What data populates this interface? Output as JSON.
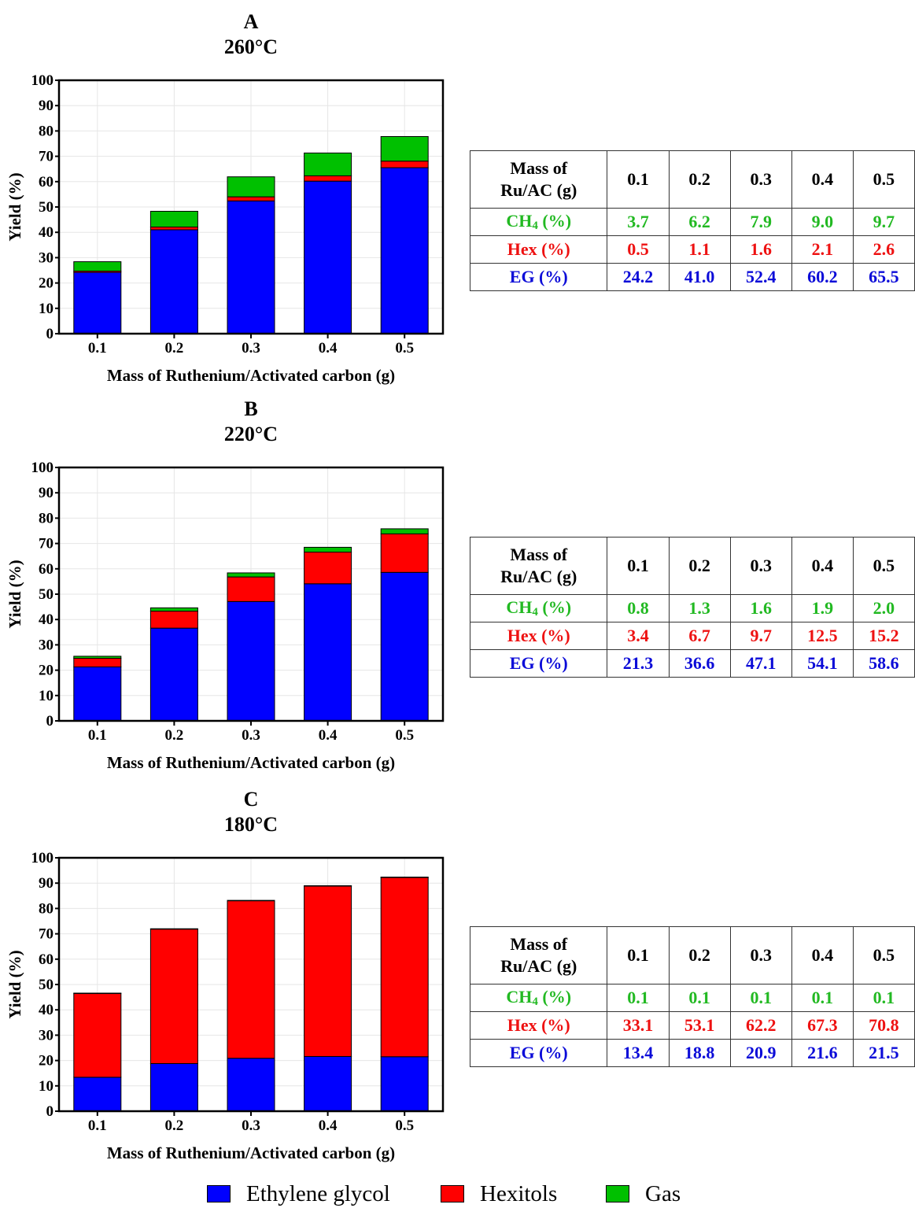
{
  "colors": {
    "eg": "#0000ff",
    "hex": "#ff0000",
    "gas": "#00c000"
  },
  "legend": [
    {
      "label": "Ethylene glycol",
      "color": "#0000ff"
    },
    {
      "label": "Hexitols",
      "color": "#ff0000"
    },
    {
      "label": "Gas",
      "color": "#00c000"
    }
  ],
  "chart_data": [
    {
      "type": "bar",
      "stacked": true,
      "panel": "A",
      "title": "260°C",
      "xlabel": "Mass of Ruthenium/Activated carbon (g)",
      "ylabel": "Yield (%)",
      "ylim": [
        0,
        100
      ],
      "yticks": [
        0,
        10,
        20,
        30,
        40,
        50,
        60,
        70,
        80,
        90,
        100
      ],
      "grid": true,
      "categories": [
        "0.1",
        "0.2",
        "0.3",
        "0.4",
        "0.5"
      ],
      "series": [
        {
          "name": "Ethylene glycol",
          "values": [
            24.2,
            41.0,
            52.4,
            60.2,
            65.5
          ]
        },
        {
          "name": "Hexitols",
          "values": [
            0.5,
            1.1,
            1.6,
            2.1,
            2.6
          ]
        },
        {
          "name": "Gas",
          "values": [
            3.7,
            6.2,
            7.9,
            9.0,
            9.7
          ]
        }
      ]
    },
    {
      "type": "bar",
      "stacked": true,
      "panel": "B",
      "title": "220°C",
      "xlabel": "Mass of Ruthenium/Activated carbon (g)",
      "ylabel": "Yield (%)",
      "ylim": [
        0,
        100
      ],
      "yticks": [
        0,
        10,
        20,
        30,
        40,
        50,
        60,
        70,
        80,
        90,
        100
      ],
      "grid": true,
      "categories": [
        "0.1",
        "0.2",
        "0.3",
        "0.4",
        "0.5"
      ],
      "series": [
        {
          "name": "Ethylene glycol",
          "values": [
            21.3,
            36.6,
            47.1,
            54.1,
            58.6
          ]
        },
        {
          "name": "Hexitols",
          "values": [
            3.4,
            6.7,
            9.7,
            12.5,
            15.2
          ]
        },
        {
          "name": "Gas",
          "values": [
            0.8,
            1.3,
            1.6,
            1.9,
            2.0
          ]
        }
      ]
    },
    {
      "type": "bar",
      "stacked": true,
      "panel": "C",
      "title": "180°C",
      "xlabel": "Mass of Ruthenium/Activated carbon (g)",
      "ylabel": "Yield (%)",
      "ylim": [
        0,
        100
      ],
      "yticks": [
        0,
        10,
        20,
        30,
        40,
        50,
        60,
        70,
        80,
        90,
        100
      ],
      "grid": true,
      "categories": [
        "0.1",
        "0.2",
        "0.3",
        "0.4",
        "0.5"
      ],
      "series": [
        {
          "name": "Ethylene glycol",
          "values": [
            13.4,
            18.8,
            20.9,
            21.6,
            21.5
          ]
        },
        {
          "name": "Hexitols",
          "values": [
            33.1,
            53.1,
            62.2,
            67.3,
            70.8
          ]
        },
        {
          "name": "Gas",
          "values": [
            0.1,
            0.1,
            0.1,
            0.1,
            0.1
          ]
        }
      ]
    }
  ],
  "tables": [
    {
      "header": [
        "Mass of",
        "Ru/AC (g)"
      ],
      "columns": [
        "0.1",
        "0.2",
        "0.3",
        "0.4",
        "0.5"
      ],
      "rows": [
        {
          "label": "CH",
          "label_sub": "4",
          "label_suffix": " (%)",
          "values": [
            "3.7",
            "6.2",
            "7.9",
            "9.0",
            "9.7"
          ]
        },
        {
          "label": "Hex (%)",
          "values": [
            "0.5",
            "1.1",
            "1.6",
            "2.1",
            "2.6"
          ]
        },
        {
          "label": "EG (%)",
          "values": [
            "24.2",
            "41.0",
            "52.4",
            "60.2",
            "65.5"
          ]
        }
      ]
    },
    {
      "header": [
        "Mass of",
        "Ru/AC (g)"
      ],
      "columns": [
        "0.1",
        "0.2",
        "0.3",
        "0.4",
        "0.5"
      ],
      "rows": [
        {
          "label": "CH",
          "label_sub": "4",
          "label_suffix": " (%)",
          "values": [
            "0.8",
            "1.3",
            "1.6",
            "1.9",
            "2.0"
          ]
        },
        {
          "label": "Hex (%)",
          "values": [
            "3.4",
            "6.7",
            "9.7",
            "12.5",
            "15.2"
          ]
        },
        {
          "label": "EG (%)",
          "values": [
            "21.3",
            "36.6",
            "47.1",
            "54.1",
            "58.6"
          ]
        }
      ]
    },
    {
      "header": [
        "Mass of",
        "Ru/AC (g)"
      ],
      "columns": [
        "0.1",
        "0.2",
        "0.3",
        "0.4",
        "0.5"
      ],
      "rows": [
        {
          "label": "CH",
          "label_sub": "4",
          "label_suffix": " (%)",
          "values": [
            "0.1",
            "0.1",
            "0.1",
            "0.1",
            "0.1"
          ]
        },
        {
          "label": "Hex (%)",
          "values": [
            "33.1",
            "53.1",
            "62.2",
            "67.3",
            "70.8"
          ]
        },
        {
          "label": "EG (%)",
          "values": [
            "13.4",
            "18.8",
            "20.9",
            "21.6",
            "21.5"
          ]
        }
      ]
    }
  ]
}
